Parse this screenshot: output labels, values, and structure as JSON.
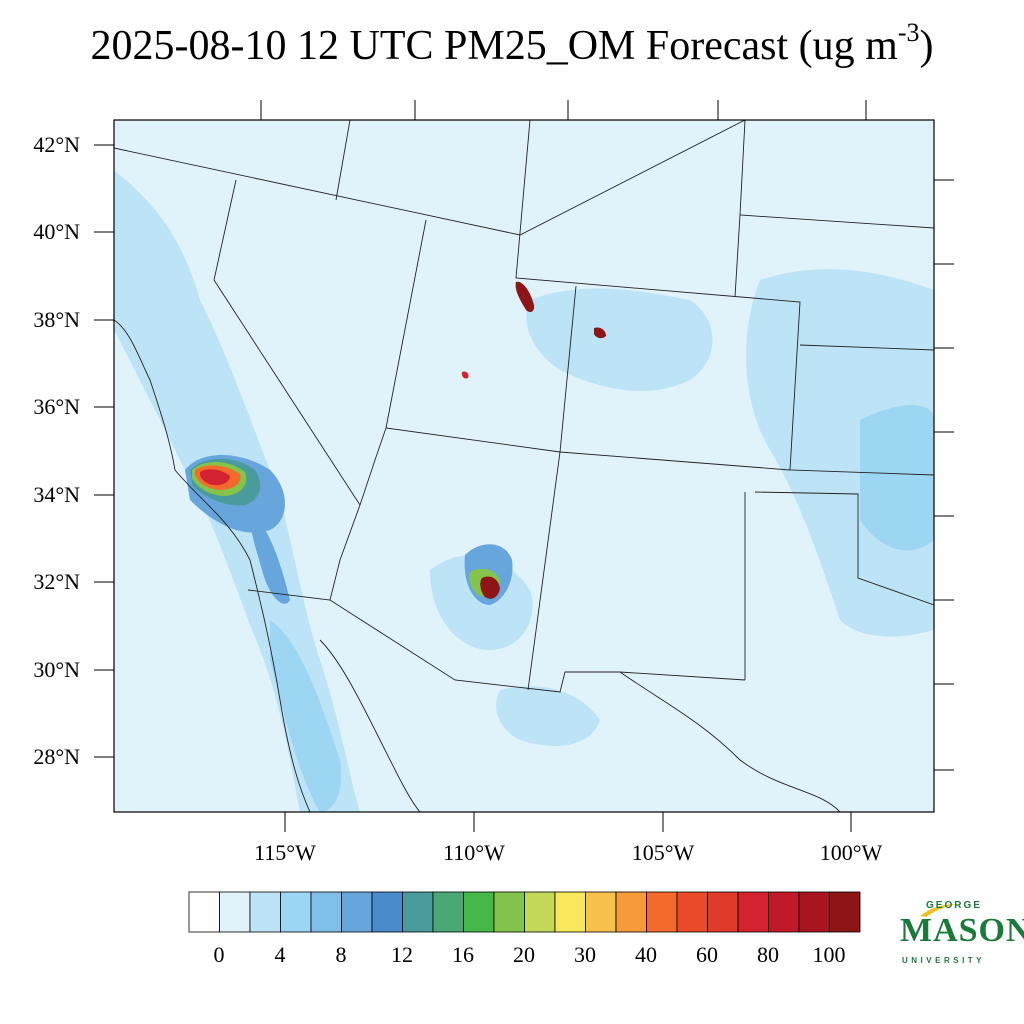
{
  "title": {
    "main": "2025-08-10 12 UTC PM25_OM Forecast (ug m",
    "sup": "-3",
    "close": ")"
  },
  "lat_labels": [
    "42°N",
    "40°N",
    "38°N",
    "36°N",
    "34°N",
    "32°N",
    "30°N",
    "28°N"
  ],
  "lat_values": [
    42,
    40,
    38,
    36,
    34,
    32,
    30,
    28
  ],
  "lon_labels": [
    "115°W",
    "110°W",
    "105°W",
    "100°W"
  ],
  "lon_values": [
    -115,
    -110,
    -105,
    -100
  ],
  "colorbar": {
    "colors": [
      "#ffffff",
      "#e0f3fb",
      "#bde4f6",
      "#9dd6f3",
      "#7fc0e8",
      "#66a6dd",
      "#4a8ccb",
      "#4a9b9b",
      "#4aa877",
      "#46b84b",
      "#85c44a",
      "#c5d958",
      "#f7e85c",
      "#f8c04c",
      "#f69a3a",
      "#f46a2c",
      "#eb4a2a",
      "#e03a2a",
      "#d42330",
      "#c01a2a",
      "#a8151f",
      "#8e1515"
    ],
    "labels": [
      "0",
      "4",
      "8",
      "12",
      "16",
      "20",
      "30",
      "40",
      "60",
      "80",
      "100"
    ]
  },
  "map_colors": {
    "background": "#e0f3fb",
    "light": "#bde4f6",
    "mid": "#9dd6f3",
    "blue": "#66a6dd",
    "teal": "#4a9b9b",
    "green": "#46b84b",
    "yellow": "#f7e85c",
    "orange": "#f46a2c",
    "red": "#d42330",
    "darkred": "#8e1515"
  },
  "logo": {
    "george": "GEORGE",
    "mason": "MASON",
    "university": "UNIVERSITY"
  }
}
